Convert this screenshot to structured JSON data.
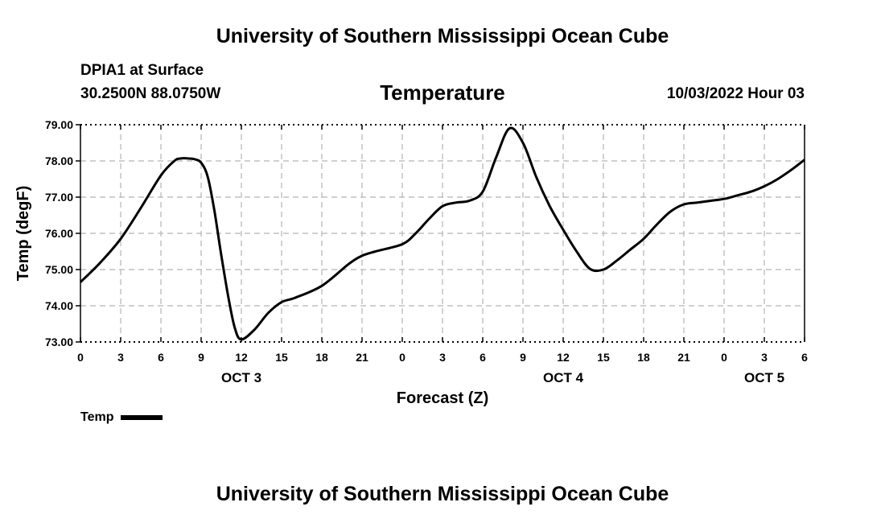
{
  "header": {
    "title_top": "University of Southern Mississippi Ocean Cube",
    "station": "DPIA1 at Surface",
    "coordinates": "30.2500N  88.0750W",
    "chart_title": "Temperature",
    "datetime": "10/03/2022 Hour 03"
  },
  "footer": {
    "title_bottom": "University of Southern Mississippi Ocean Cube"
  },
  "legend": {
    "label": "Temp",
    "color": "#000000"
  },
  "chart_data": {
    "type": "line",
    "title": "Temperature",
    "xlabel": "Forecast (Z)",
    "ylabel": "Temp (degF)",
    "ylim": [
      73.0,
      79.0
    ],
    "xlim": [
      0,
      54
    ],
    "y_ticks": [
      "73.00",
      "74.00",
      "75.00",
      "76.00",
      "77.00",
      "78.00",
      "79.00"
    ],
    "x_tick_labels": [
      "0",
      "3",
      "6",
      "9",
      "12",
      "15",
      "18",
      "21",
      "0",
      "3",
      "6",
      "9",
      "12",
      "15",
      "18",
      "21",
      "0",
      "3",
      "6"
    ],
    "date_labels": [
      {
        "label": "OCT 3",
        "hour": 12
      },
      {
        "label": "OCT 4",
        "hour": 36
      },
      {
        "label": "OCT 5",
        "hour": 51
      }
    ],
    "grid": true,
    "series": [
      {
        "name": "Temp",
        "x": [
          0,
          1.5,
          3,
          4.5,
          6,
          7,
          7.5,
          8,
          8.5,
          9,
          9.5,
          10,
          10.5,
          11,
          11.5,
          12,
          13,
          14,
          15,
          16,
          18,
          20,
          21,
          22,
          24,
          25,
          26,
          27,
          28,
          29,
          30,
          31,
          32,
          33,
          34,
          35,
          36,
          37,
          38,
          39,
          40,
          41,
          42,
          43,
          44,
          45,
          46,
          47,
          48,
          49,
          50,
          51,
          52,
          53,
          54
        ],
        "y": [
          74.65,
          75.2,
          75.85,
          76.7,
          77.6,
          78.0,
          78.07,
          78.07,
          78.05,
          77.95,
          77.55,
          76.6,
          75.4,
          74.3,
          73.4,
          73.07,
          73.35,
          73.8,
          74.1,
          74.22,
          74.55,
          75.15,
          75.38,
          75.5,
          75.7,
          76.0,
          76.4,
          76.75,
          76.85,
          76.9,
          77.15,
          78.1,
          78.9,
          78.5,
          77.55,
          76.75,
          76.1,
          75.5,
          75.02,
          75.0,
          75.25,
          75.55,
          75.85,
          76.25,
          76.6,
          76.8,
          76.85,
          76.9,
          76.95,
          77.05,
          77.15,
          77.3,
          77.5,
          77.75,
          78.03
        ]
      }
    ]
  }
}
